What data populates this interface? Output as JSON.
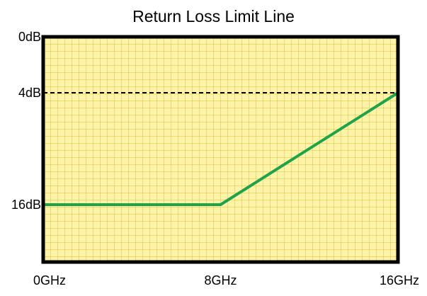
{
  "chart_data": {
    "type": "line",
    "title": "Return Loss Limit Line",
    "xlabel": "",
    "ylabel": "",
    "x_ticks": [
      {
        "value": 0,
        "label": "0GHz"
      },
      {
        "value": 8,
        "label": "8GHz"
      },
      {
        "value": 16,
        "label": "16GHz"
      }
    ],
    "y_ticks": [
      {
        "value": 0,
        "label": "0dB"
      },
      {
        "value": 4,
        "label": "4dB"
      },
      {
        "value": 16,
        "label": "16dB"
      }
    ],
    "xlim": [
      0,
      16
    ],
    "ylim": [
      0,
      16
    ],
    "y_inverted": true,
    "grid": true,
    "background_color": "#fff3a8",
    "grid_color": "#d8c233",
    "series": [
      {
        "color": "#1fa34a",
        "points": [
          [
            0,
            16
          ],
          [
            8,
            16
          ],
          [
            16,
            4
          ]
        ]
      }
    ],
    "reference_lines": [
      {
        "axis": "y",
        "value": 4,
        "style": "dashed",
        "color": "#000000"
      }
    ]
  }
}
